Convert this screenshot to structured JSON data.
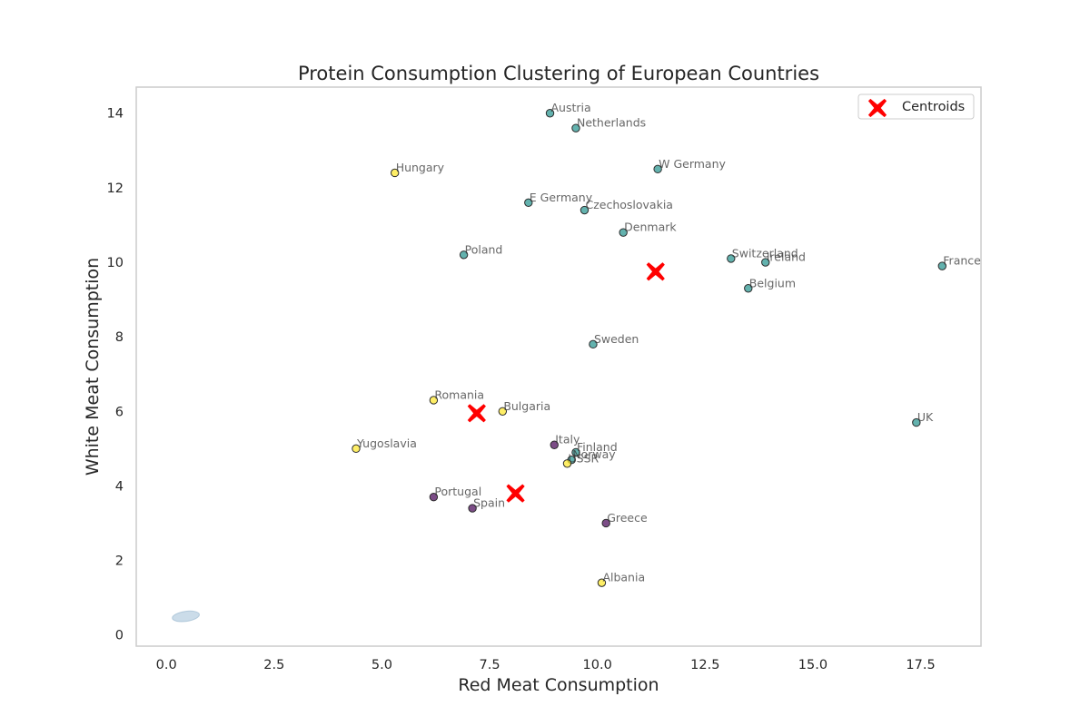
{
  "chart_data": {
    "type": "scatter",
    "title": "Protein Consumption Clustering of European Countries",
    "xlabel": "Red Meat Consumption",
    "ylabel": "White Meat Consumption",
    "xlim": [
      -0.7,
      18.9
    ],
    "ylim": [
      -0.3,
      14.7
    ],
    "xticks": [
      0.0,
      2.5,
      5.0,
      7.5,
      10.0,
      12.5,
      15.0,
      17.5
    ],
    "xtick_labels": [
      "0.0",
      "2.5",
      "5.0",
      "7.5",
      "10.0",
      "12.5",
      "15.0",
      "17.5"
    ],
    "yticks": [
      0,
      2,
      4,
      6,
      8,
      10,
      12,
      14
    ],
    "ytick_labels": [
      "0",
      "2",
      "4",
      "6",
      "8",
      "10",
      "12",
      "14"
    ],
    "grid": false,
    "legend": {
      "position": "upper-right",
      "entries": [
        "Centroids"
      ]
    },
    "colors": {
      "cluster_0": "#440154",
      "cluster_1": "#21918c",
      "cluster_2": "#fde725",
      "centroid": "#ff0000",
      "spine": "#cccccc",
      "stray_ellipse": "#a9c4da"
    },
    "points": [
      {
        "label": "Albania",
        "x": 10.1,
        "y": 1.4,
        "cluster": 2
      },
      {
        "label": "Austria",
        "x": 8.9,
        "y": 14.0,
        "cluster": 1
      },
      {
        "label": "Belgium",
        "x": 13.5,
        "y": 9.3,
        "cluster": 1
      },
      {
        "label": "Bulgaria",
        "x": 7.8,
        "y": 6.0,
        "cluster": 2
      },
      {
        "label": "Czechoslovakia",
        "x": 9.7,
        "y": 11.4,
        "cluster": 1
      },
      {
        "label": "Denmark",
        "x": 10.6,
        "y": 10.8,
        "cluster": 1
      },
      {
        "label": "E Germany",
        "x": 8.4,
        "y": 11.6,
        "cluster": 1
      },
      {
        "label": "Finland",
        "x": 9.5,
        "y": 4.9,
        "cluster": 1
      },
      {
        "label": "France",
        "x": 18.0,
        "y": 9.9,
        "cluster": 1
      },
      {
        "label": "Greece",
        "x": 10.2,
        "y": 3.0,
        "cluster": 0
      },
      {
        "label": "Hungary",
        "x": 5.3,
        "y": 12.4,
        "cluster": 2
      },
      {
        "label": "Ireland",
        "x": 13.9,
        "y": 10.0,
        "cluster": 1
      },
      {
        "label": "Italy",
        "x": 9.0,
        "y": 5.1,
        "cluster": 0
      },
      {
        "label": "Netherlands",
        "x": 9.5,
        "y": 13.6,
        "cluster": 1
      },
      {
        "label": "Norway",
        "x": 9.4,
        "y": 4.7,
        "cluster": 1
      },
      {
        "label": "Poland",
        "x": 6.9,
        "y": 10.2,
        "cluster": 1
      },
      {
        "label": "Portugal",
        "x": 6.2,
        "y": 3.7,
        "cluster": 0
      },
      {
        "label": "Romania",
        "x": 6.2,
        "y": 6.3,
        "cluster": 2
      },
      {
        "label": "Spain",
        "x": 7.1,
        "y": 3.4,
        "cluster": 0
      },
      {
        "label": "Sweden",
        "x": 9.9,
        "y": 7.8,
        "cluster": 1
      },
      {
        "label": "Switzerland",
        "x": 13.1,
        "y": 10.1,
        "cluster": 1
      },
      {
        "label": "UK",
        "x": 17.4,
        "y": 5.7,
        "cluster": 1
      },
      {
        "label": "USSR",
        "x": 9.3,
        "y": 4.6,
        "cluster": 2
      },
      {
        "label": "W Germany",
        "x": 11.4,
        "y": 12.5,
        "cluster": 1
      },
      {
        "label": "Yugoslavia",
        "x": 4.4,
        "y": 5.0,
        "cluster": 2
      }
    ],
    "centroids": [
      {
        "x": 11.35,
        "y": 9.75
      },
      {
        "x": 7.2,
        "y": 5.95
      },
      {
        "x": 8.1,
        "y": 3.8
      }
    ],
    "stray_ellipse": {
      "x": 0.45,
      "y": 0.5
    }
  }
}
